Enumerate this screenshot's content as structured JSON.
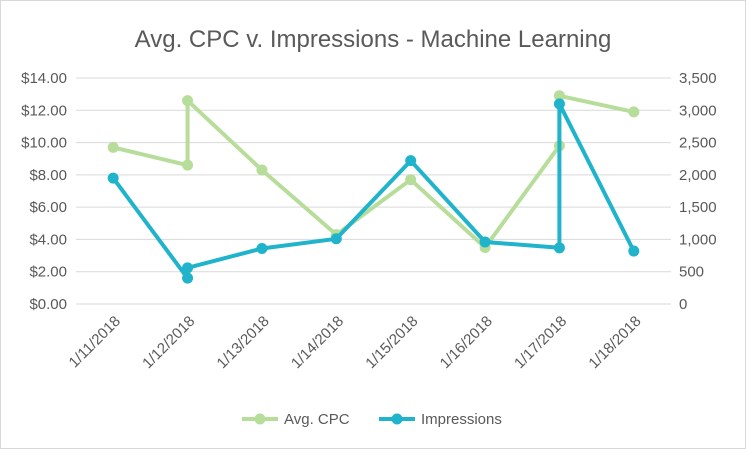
{
  "chart_data": {
    "type": "line",
    "title": "Avg. CPC v. Impressions - Machine Learning",
    "x_ticks": [
      "1/11/2018",
      "1/12/2018",
      "1/13/2018",
      "1/14/2018",
      "1/15/2018",
      "1/16/2018",
      "1/17/2018",
      "1/18/2018"
    ],
    "y_left": {
      "ticks": [
        "$0.00",
        "$2.00",
        "$4.00",
        "$6.00",
        "$8.00",
        "$10.00",
        "$12.00",
        "$14.00"
      ],
      "min": 0,
      "max": 14
    },
    "y_right": {
      "ticks": [
        "0",
        "500",
        "1,000",
        "1,500",
        "2,000",
        "2,500",
        "3,000",
        "3,500"
      ],
      "min": 0,
      "max": 3500
    },
    "grid": true,
    "legend": "bottom",
    "series": [
      {
        "name": "Avg. CPC",
        "axis": "left",
        "color": "#b7dd9a",
        "points": [
          {
            "x": "1/11/2018",
            "y": 9.7
          },
          {
            "x": "1/12/2018",
            "y": 8.6
          },
          {
            "x": "1/12/2018",
            "y": 12.6
          },
          {
            "x": "1/13/2018",
            "y": 8.3
          },
          {
            "x": "1/14/2018",
            "y": 4.3
          },
          {
            "x": "1/15/2018",
            "y": 7.7
          },
          {
            "x": "1/16/2018",
            "y": 3.5
          },
          {
            "x": "1/17/2018",
            "y": 9.8
          },
          {
            "x": "1/17/2018",
            "y": 12.9
          },
          {
            "x": "1/18/2018",
            "y": 11.9
          }
        ]
      },
      {
        "name": "Impressions",
        "axis": "right",
        "color": "#1fb3cc",
        "points": [
          {
            "x": "1/11/2018",
            "y": 1950
          },
          {
            "x": "1/12/2018",
            "y": 400
          },
          {
            "x": "1/12/2018",
            "y": 560
          },
          {
            "x": "1/13/2018",
            "y": 860
          },
          {
            "x": "1/14/2018",
            "y": 1010
          },
          {
            "x": "1/15/2018",
            "y": 2220
          },
          {
            "x": "1/16/2018",
            "y": 960
          },
          {
            "x": "1/17/2018",
            "y": 870
          },
          {
            "x": "1/17/2018",
            "y": 3100
          },
          {
            "x": "1/18/2018",
            "y": 820
          }
        ]
      }
    ]
  }
}
